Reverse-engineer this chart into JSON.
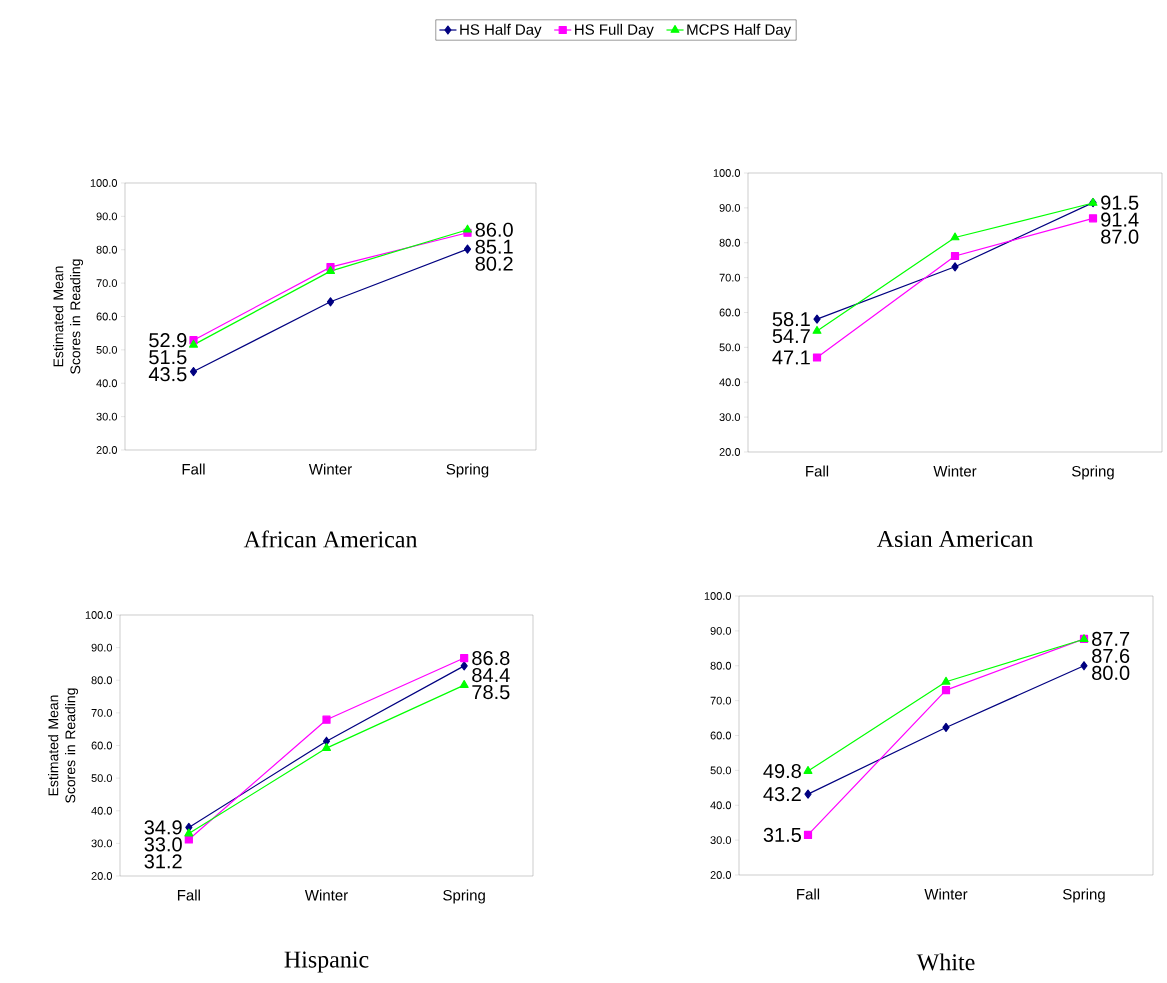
{
  "chart_data": [
    {
      "type": "line",
      "title": "African American",
      "ylabel": "Estimated Mean Scores in Reading",
      "categories": [
        "Fall",
        "Winter",
        "Spring"
      ],
      "ylim": [
        20,
        100
      ],
      "yticks": [
        {
          "value": 20,
          "label": "20.0"
        },
        {
          "value": 30,
          "label": "30.0"
        },
        {
          "value": 40,
          "label": "40.0"
        },
        {
          "value": 50,
          "label": "50.0"
        },
        {
          "value": 60,
          "label": "60.0"
        },
        {
          "value": 70,
          "label": "70.0"
        },
        {
          "value": 80,
          "label": "80.0"
        },
        {
          "value": 90,
          "label": "90.0"
        },
        {
          "value": 100,
          "label": "100.0"
        }
      ],
      "legend": "top",
      "series": [
        {
          "name": "HS Half Day",
          "color": "#000080",
          "marker": "diamond",
          "values": [
            43.5,
            64.4,
            80.2
          ],
          "value_labels": [
            "43.5",
            null,
            "80.2"
          ]
        },
        {
          "name": "HS Full Day",
          "color": "#ff00ff",
          "marker": "square",
          "values": [
            52.9,
            74.8,
            85.1
          ],
          "value_labels": [
            "52.9",
            null,
            "85.1"
          ]
        },
        {
          "name": "MCPS Half Day",
          "color": "#00ff00",
          "marker": "triangle",
          "values": [
            51.5,
            73.6,
            86.0
          ],
          "value_labels": [
            "51.5",
            null,
            "86.0"
          ]
        }
      ]
    },
    {
      "type": "line",
      "title": "Asian American",
      "categories": [
        "Fall",
        "Winter",
        "Spring"
      ],
      "ylim": [
        20,
        100
      ],
      "yticks": [
        {
          "value": 20,
          "label": "20.0"
        },
        {
          "value": 30,
          "label": "30.0"
        },
        {
          "value": 40,
          "label": "40.0"
        },
        {
          "value": 50,
          "label": "50.0"
        },
        {
          "value": 60,
          "label": "60.0"
        },
        {
          "value": 70,
          "label": "70.0"
        },
        {
          "value": 80,
          "label": "80.0"
        },
        {
          "value": 90,
          "label": "90.0"
        },
        {
          "value": 100,
          "label": "100.0"
        }
      ],
      "series": [
        {
          "color": "#000080",
          "marker": "diamond",
          "values": [
            58.1,
            73.1,
            91.5
          ],
          "value_labels": [
            "58.1",
            null,
            "91.5"
          ]
        },
        {
          "color": "#ff00ff",
          "marker": "square",
          "values": [
            47.1,
            76.2,
            87.0
          ],
          "value_labels": [
            "47.1",
            null,
            "87.0"
          ]
        },
        {
          "color": "#00ff00",
          "marker": "triangle",
          "values": [
            54.7,
            81.5,
            91.4
          ],
          "value_labels": [
            "54.7",
            null,
            "91.4"
          ]
        }
      ]
    },
    {
      "type": "line",
      "title": "Hispanic",
      "ylabel": "Estimated Mean Scores in Reading",
      "categories": [
        "Fall",
        "Winter",
        "Spring"
      ],
      "ylim": [
        20,
        100
      ],
      "yticks": [
        {
          "value": 20,
          "label": "20.0"
        },
        {
          "value": 30,
          "label": "30.0"
        },
        {
          "value": 40,
          "label": "40.0"
        },
        {
          "value": 50,
          "label": "50.0"
        },
        {
          "value": 60,
          "label": "60.0"
        },
        {
          "value": 70,
          "label": "70.0"
        },
        {
          "value": 80,
          "label": "80.0"
        },
        {
          "value": 90,
          "label": "90.0"
        },
        {
          "value": 100,
          "label": "100.0"
        }
      ],
      "series": [
        {
          "color": "#000080",
          "marker": "diamond",
          "values": [
            34.9,
            61.3,
            84.4
          ],
          "value_labels": [
            "34.9",
            null,
            "84.4"
          ]
        },
        {
          "color": "#ff00ff",
          "marker": "square",
          "values": [
            31.2,
            67.9,
            86.8
          ],
          "value_labels": [
            "31.2",
            null,
            "86.8"
          ]
        },
        {
          "color": "#00ff00",
          "marker": "triangle",
          "values": [
            33.0,
            59.2,
            78.5
          ],
          "value_labels": [
            "33.0",
            null,
            "78.5"
          ]
        }
      ]
    },
    {
      "type": "line",
      "title": "White",
      "categories": [
        "Fall",
        "Winter",
        "Spring"
      ],
      "ylim": [
        20,
        100
      ],
      "yticks": [
        {
          "value": 20,
          "label": "20.0"
        },
        {
          "value": 30,
          "label": "30.0"
        },
        {
          "value": 40,
          "label": "40.0"
        },
        {
          "value": 50,
          "label": "50.0"
        },
        {
          "value": 60,
          "label": "60.0"
        },
        {
          "value": 70,
          "label": "70.0"
        },
        {
          "value": 80,
          "label": "80.0"
        },
        {
          "value": 90,
          "label": "90.0"
        },
        {
          "value": 100,
          "label": "100.0"
        }
      ],
      "series": [
        {
          "color": "#000080",
          "marker": "diamond",
          "values": [
            43.2,
            62.3,
            80.0
          ],
          "value_labels": [
            "43.2",
            null,
            "80.0"
          ]
        },
        {
          "color": "#ff00ff",
          "marker": "square",
          "values": [
            31.5,
            73.0,
            87.7
          ],
          "value_labels": [
            "31.5",
            null,
            "87.7"
          ]
        },
        {
          "color": "#00ff00",
          "marker": "triangle",
          "values": [
            49.8,
            75.4,
            87.6
          ],
          "value_labels": [
            "49.8",
            null,
            "87.6"
          ]
        }
      ]
    }
  ]
}
